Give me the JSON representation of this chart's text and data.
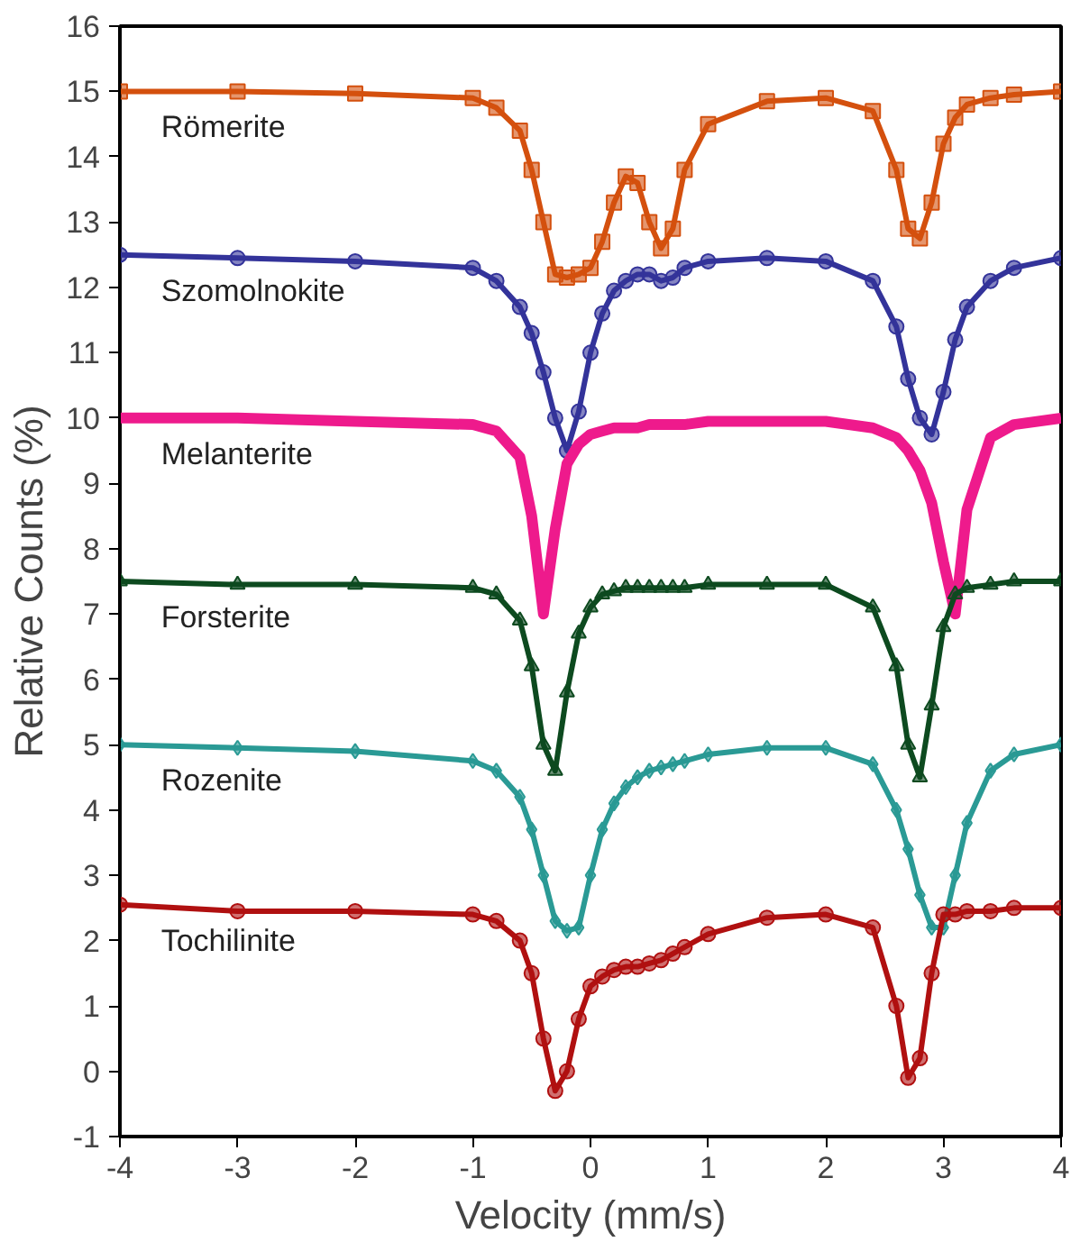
{
  "chart_data": {
    "type": "line",
    "xlabel": "Velocity (mm/s)",
    "ylabel": "Relative Counts (%)",
    "x": [
      -4,
      -3,
      -2,
      -1,
      -0.8,
      -0.6,
      -0.5,
      -0.4,
      -0.3,
      -0.2,
      -0.1,
      0,
      0.1,
      0.2,
      0.3,
      0.4,
      0.5,
      0.6,
      0.7,
      0.8,
      1,
      1.5,
      2,
      2.4,
      2.6,
      2.7,
      2.8,
      2.9,
      3.0,
      3.1,
      3.2,
      3.4,
      3.6,
      4
    ],
    "xlim": [
      -4,
      4
    ],
    "xticks": [
      -4,
      -3,
      -2,
      -1,
      0,
      1,
      2,
      3,
      4
    ],
    "ylim": [
      -1,
      16
    ],
    "yticks": [
      -1,
      0,
      1,
      2,
      3,
      4,
      5,
      6,
      7,
      8,
      9,
      10,
      11,
      12,
      13,
      14,
      15,
      16
    ],
    "grid": false,
    "legend": false,
    "series": [
      {
        "name": "Römerite",
        "color": "#d4500e",
        "marker": "square",
        "values": [
          15.0,
          15.0,
          14.97,
          14.9,
          14.75,
          14.4,
          13.8,
          13.0,
          12.2,
          12.15,
          12.2,
          12.3,
          12.7,
          13.3,
          13.7,
          13.6,
          13.0,
          12.6,
          12.9,
          13.8,
          14.5,
          14.85,
          14.9,
          14.7,
          13.8,
          12.9,
          12.75,
          13.3,
          14.2,
          14.6,
          14.8,
          14.9,
          14.95,
          15.0
        ]
      },
      {
        "name": "Szomolnokite",
        "color": "#33339a",
        "marker": "circle",
        "values": [
          12.5,
          12.45,
          12.4,
          12.3,
          12.1,
          11.7,
          11.3,
          10.7,
          10.0,
          9.5,
          10.1,
          11.0,
          11.6,
          11.95,
          12.1,
          12.2,
          12.2,
          12.1,
          12.15,
          12.3,
          12.4,
          12.45,
          12.4,
          12.1,
          11.4,
          10.6,
          10.0,
          9.75,
          10.4,
          11.2,
          11.7,
          12.1,
          12.3,
          12.45
        ]
      },
      {
        "name": "Melanterite",
        "color": "#ee1a8c",
        "marker": "none",
        "values": [
          10.0,
          10.0,
          9.95,
          9.9,
          9.8,
          9.4,
          8.5,
          7.0,
          8.3,
          9.3,
          9.6,
          9.75,
          9.8,
          9.85,
          9.85,
          9.85,
          9.9,
          9.9,
          9.9,
          9.9,
          9.95,
          9.95,
          9.95,
          9.85,
          9.7,
          9.5,
          9.2,
          8.7,
          7.8,
          7.0,
          8.6,
          9.7,
          9.9,
          10.0
        ]
      },
      {
        "name": "Forsterite",
        "color": "#0d4a1f",
        "marker": "triangle",
        "values": [
          7.5,
          7.45,
          7.45,
          7.4,
          7.3,
          6.9,
          6.2,
          5.0,
          4.6,
          5.8,
          6.7,
          7.1,
          7.3,
          7.35,
          7.4,
          7.4,
          7.4,
          7.4,
          7.4,
          7.4,
          7.45,
          7.45,
          7.45,
          7.1,
          6.2,
          5.0,
          4.5,
          5.6,
          6.8,
          7.3,
          7.4,
          7.45,
          7.5,
          7.5
        ]
      },
      {
        "name": "Rozenite",
        "color": "#2a9a95",
        "marker": "diamond",
        "values": [
          5.0,
          4.95,
          4.9,
          4.75,
          4.6,
          4.2,
          3.7,
          3.0,
          2.3,
          2.15,
          2.2,
          3.0,
          3.7,
          4.1,
          4.35,
          4.5,
          4.6,
          4.65,
          4.7,
          4.75,
          4.85,
          4.95,
          4.95,
          4.7,
          4.0,
          3.4,
          2.7,
          2.2,
          2.2,
          3.0,
          3.8,
          4.6,
          4.85,
          5.0
        ]
      },
      {
        "name": "Tochilinite",
        "color": "#b01010",
        "marker": "circle",
        "values": [
          2.55,
          2.45,
          2.45,
          2.4,
          2.3,
          2.0,
          1.5,
          0.5,
          -0.3,
          0.0,
          0.8,
          1.3,
          1.45,
          1.55,
          1.6,
          1.6,
          1.65,
          1.7,
          1.8,
          1.9,
          2.1,
          2.35,
          2.4,
          2.2,
          1.0,
          -0.1,
          0.2,
          1.5,
          2.4,
          2.4,
          2.45,
          2.45,
          2.5,
          2.5
        ]
      }
    ]
  }
}
